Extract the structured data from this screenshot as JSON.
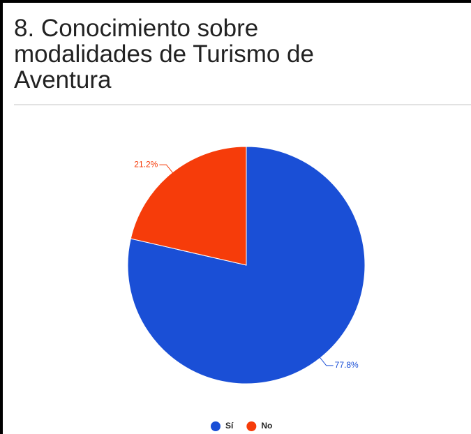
{
  "chart_data": {
    "type": "pie",
    "title": "8. Conocimiento sobre modalidades de Turismo de Aventura",
    "categories": [
      "Sí",
      "No"
    ],
    "values": [
      77.8,
      21.2
    ],
    "value_labels": [
      "77.8%",
      "21.2%"
    ],
    "colors": [
      "#1a4fd6",
      "#f63c0a"
    ],
    "legend": "bottom"
  }
}
